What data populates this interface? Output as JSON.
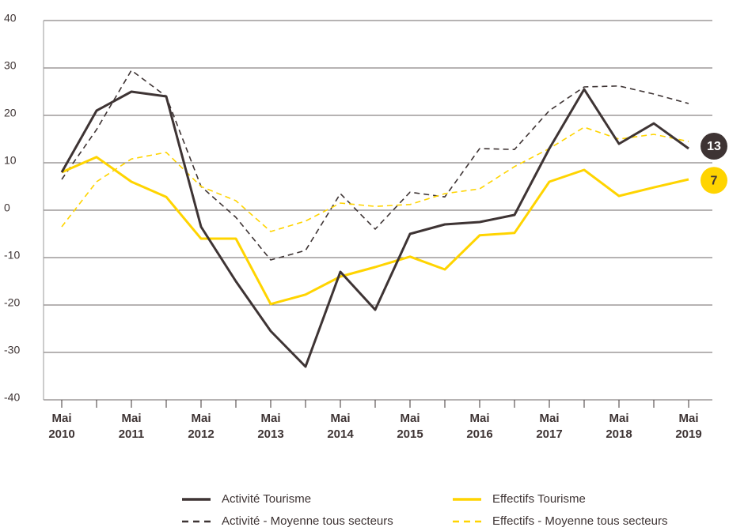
{
  "chart_data": {
    "type": "line",
    "categories": [
      "Mai 2010",
      null,
      "Mai 2011",
      null,
      "Mai 2012",
      null,
      "Mai 2013",
      null,
      "Mai 2014",
      null,
      "Mai 2015",
      null,
      "Mai 2016",
      null,
      "Mai 2017",
      null,
      "Mai 2018",
      null,
      "Mai 2019"
    ],
    "series": [
      {
        "name": "Activité Tourisme",
        "color": "#3e3434",
        "dash": false,
        "values": [
          8,
          21,
          25,
          24,
          -3.5,
          -15,
          -25.5,
          -33,
          -13,
          -21,
          -5,
          -3,
          -2.5,
          -1,
          13,
          25.5,
          14,
          18.3,
          13
        ]
      },
      {
        "name": "Activité - Moyenne tous secteurs",
        "color": "#3e3434",
        "dash": true,
        "values": [
          6.5,
          17,
          29.5,
          24,
          5,
          -1.5,
          -10.5,
          -8.5,
          3.5,
          -4,
          3.8,
          2.8,
          13,
          12.8,
          21,
          26,
          26.2,
          24.5,
          22.5
        ]
      },
      {
        "name": "Effectifs Tourisme",
        "color": "#ffd400",
        "dash": false,
        "values": [
          8,
          11.2,
          6,
          2.8,
          -6,
          -6,
          -19.8,
          -17.8,
          -14,
          -12,
          -9.8,
          -12.5,
          -5.3,
          -4.8,
          6,
          8.5,
          3,
          4.8,
          6.5
        ]
      },
      {
        "name": "Effectifs - Moyenne tous secteurs",
        "color": "#ffd400",
        "dash": true,
        "values": [
          -3.5,
          6,
          10.8,
          12.2,
          5,
          2,
          -4.5,
          -2.3,
          1.5,
          0.8,
          1.2,
          3.5,
          4.5,
          9.2,
          13,
          17.5,
          15,
          16,
          14.5
        ]
      }
    ],
    "annotations": [
      {
        "text": "13",
        "y": 13.5,
        "color": "#3e3434",
        "text_color": "#ffffff"
      },
      {
        "text": "7",
        "y": 6.3,
        "color": "#ffd400",
        "text_color": "#3e3434"
      }
    ],
    "ylim": [
      -40,
      40
    ],
    "yticks": [
      -40,
      -30,
      -20,
      -10,
      0,
      10,
      20,
      30,
      40
    ],
    "grid": true
  }
}
